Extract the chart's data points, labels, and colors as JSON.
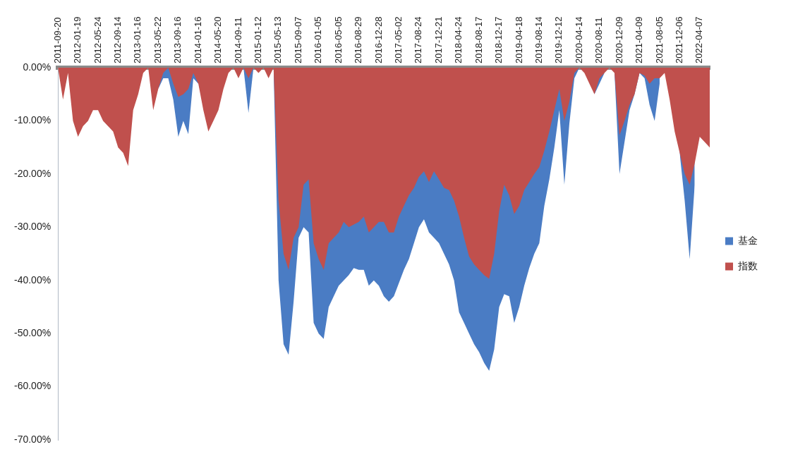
{
  "chart_data": {
    "type": "area",
    "categories": [
      "2011-09-20",
      null,
      null,
      null,
      "2012-01-19",
      null,
      null,
      null,
      "2012-05-24",
      null,
      null,
      null,
      "2012-09-14",
      null,
      null,
      null,
      "2013-01-16",
      null,
      null,
      null,
      "2013-05-22",
      null,
      null,
      null,
      "2013-09-16",
      null,
      null,
      null,
      "2014-01-16",
      null,
      null,
      null,
      "2014-05-20",
      null,
      null,
      null,
      "2014-09-11",
      null,
      null,
      null,
      "2015-01-12",
      null,
      null,
      null,
      "2015-05-13",
      null,
      null,
      null,
      "2015-09-07",
      null,
      null,
      null,
      "2016-01-05",
      null,
      null,
      null,
      "2016-05-05",
      null,
      null,
      null,
      "2016-08-29",
      null,
      null,
      null,
      "2016-12-28",
      null,
      null,
      null,
      "2017-05-02",
      null,
      null,
      null,
      "2017-08-24",
      null,
      null,
      null,
      "2017-12-21",
      null,
      null,
      null,
      "2018-04-24",
      null,
      null,
      null,
      "2018-08-17",
      null,
      null,
      null,
      "2018-12-17",
      null,
      null,
      null,
      "2019-04-18",
      null,
      null,
      null,
      "2019-08-14",
      null,
      null,
      null,
      "2019-12-12",
      null,
      null,
      null,
      "2020-04-14",
      null,
      null,
      null,
      "2020-08-11",
      null,
      null,
      null,
      "2020-12-09",
      null,
      null,
      null,
      "2021-04-09",
      null,
      null,
      null,
      "2021-08-05",
      null,
      null,
      null,
      "2021-12-06",
      null,
      null,
      null,
      "2022-04-07",
      null,
      null
    ],
    "series": [
      {
        "name": "基金",
        "color": "#4a7cc4",
        "values": [
          null,
          null,
          null,
          null,
          null,
          null,
          null,
          null,
          null,
          null,
          null,
          null,
          null,
          null,
          null,
          null,
          null,
          null,
          null,
          null,
          -4,
          -2,
          -2,
          -6,
          -13,
          -10,
          -12.5,
          -2,
          -3,
          null,
          null,
          null,
          null,
          null,
          null,
          null,
          null,
          0,
          -8.5,
          0,
          null,
          null,
          null,
          0,
          -40,
          -52,
          -54,
          -44,
          -32,
          -30,
          -31,
          -48,
          -50,
          -51,
          -45,
          -43,
          -41,
          -40,
          -39,
          -37.7,
          -38,
          -38,
          -41,
          -40,
          -41,
          -43,
          -44,
          -43,
          -40.5,
          -38,
          -36,
          -33,
          -30,
          -28.5,
          -31,
          -32,
          -33,
          -35,
          -37,
          -40,
          -46,
          -48,
          -50,
          -52,
          -53.5,
          -55.5,
          -57,
          -53,
          -45,
          -42.6,
          -43,
          -48,
          -45,
          -41,
          -37.7,
          -35,
          -33,
          -26,
          -21,
          -15,
          -8,
          -22,
          -10.5,
          -2,
          0,
          null,
          null,
          -5,
          -3,
          -1,
          null,
          -1,
          -20,
          -14,
          -8,
          -5,
          -1,
          -2,
          -7,
          -10,
          -3,
          null,
          null,
          null,
          -16,
          -25,
          -36,
          -22,
          null,
          null,
          null
        ]
      },
      {
        "name": "指数",
        "color": "#c0504d",
        "values": [
          0,
          -6,
          -1,
          -10,
          -13,
          -11,
          -10,
          -8,
          -8,
          -10,
          -11,
          -12,
          -15,
          -16,
          -18.5,
          -8,
          -5,
          -1,
          0,
          -8,
          -4,
          -1,
          0,
          -3,
          -5.5,
          -5,
          -4,
          -1,
          -3,
          -8,
          -12,
          -10,
          -8,
          -4,
          -1,
          0,
          -2,
          0,
          -2,
          0,
          -1,
          0,
          -2,
          0,
          -25,
          -35,
          -38,
          -32,
          -30,
          -22,
          -21,
          -33,
          -36,
          -38,
          -33,
          -32,
          -31,
          -29,
          -30,
          -29.5,
          -29,
          -28,
          -31,
          -30,
          -29,
          -29,
          -31,
          -31,
          -28,
          -26,
          -24,
          -22.6,
          -20.5,
          -19.5,
          -21.5,
          -19.5,
          -21,
          -22.6,
          -23,
          -25,
          -28,
          -32,
          -35.5,
          -37,
          -38,
          -39,
          -39.7,
          -35,
          -27,
          -22,
          -24,
          -27.5,
          -26,
          -23,
          -21.5,
          -20,
          -18.7,
          -15.6,
          -12,
          -8,
          -4,
          -10,
          -6.4,
          -1,
          0,
          -1,
          -3,
          -5,
          -2,
          -1,
          0,
          -1,
          -12.7,
          -10,
          -7,
          -5,
          -1,
          -1.5,
          -3,
          -2,
          -2,
          -1,
          -6,
          -12,
          -16,
          -20,
          -22,
          -18,
          -13,
          -14,
          -15
        ]
      }
    ],
    "ylim": [
      -70,
      0
    ],
    "yticks": [
      {
        "value": 0,
        "label": "0.00%"
      },
      {
        "value": -10,
        "label": "-10.00%"
      },
      {
        "value": -20,
        "label": "-20.00%"
      },
      {
        "value": -30,
        "label": "-30.00%"
      },
      {
        "value": -40,
        "label": "-40.00%"
      },
      {
        "value": -50,
        "label": "-50.00%"
      },
      {
        "value": -60,
        "label": "-60.00%"
      },
      {
        "value": -70,
        "label": "-70.00%"
      }
    ],
    "legend": "right"
  }
}
